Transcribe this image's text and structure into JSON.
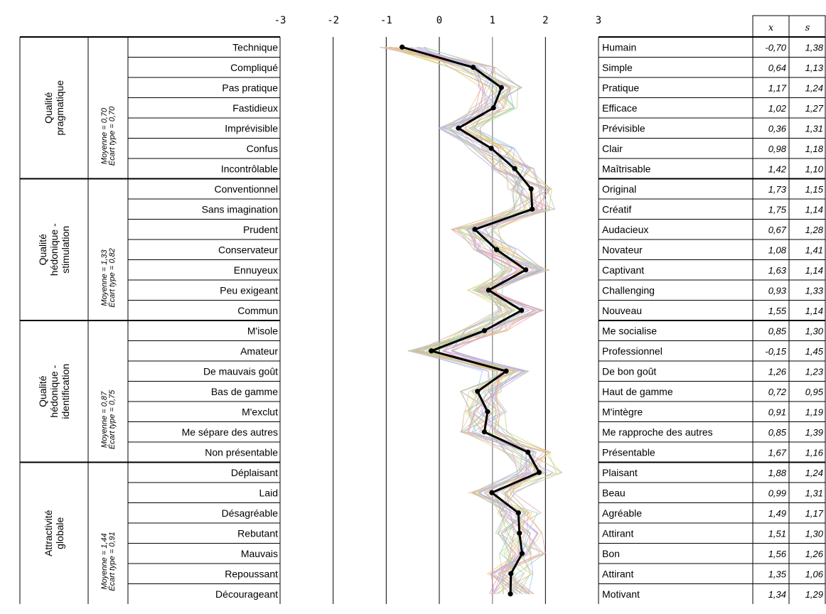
{
  "chart_data": {
    "type": "line",
    "x_axis": {
      "ticks": [
        "-3",
        "-2",
        "-1",
        "0",
        "1",
        "2",
        "3"
      ],
      "range": [
        -3,
        3
      ]
    },
    "stat_headers": {
      "mean": "x",
      "sd": "s"
    },
    "groups": [
      {
        "name": "Qualité pragmatique",
        "stats": "Moyenne = 0,70 Écart type = 0,70",
        "items": [
          {
            "left": "Technique",
            "right": "Humain",
            "x": -0.7,
            "x_label": "-0,70",
            "s_label": "1,38"
          },
          {
            "left": "Compliqué",
            "right": "Simple",
            "x": 0.64,
            "x_label": "0,64",
            "s_label": "1,13"
          },
          {
            "left": "Pas pratique",
            "right": "Pratique",
            "x": 1.17,
            "x_label": "1,17",
            "s_label": "1,24"
          },
          {
            "left": "Fastidieux",
            "right": "Efficace",
            "x": 1.02,
            "x_label": "1,02",
            "s_label": "1,27"
          },
          {
            "left": "Imprévisible",
            "right": "Prévisible",
            "x": 0.36,
            "x_label": "0,36",
            "s_label": "1,31"
          },
          {
            "left": "Confus",
            "right": "Clair",
            "x": 0.98,
            "x_label": "0,98",
            "s_label": "1,18"
          },
          {
            "left": "Incontrôlable",
            "right": "Maîtrisable",
            "x": 1.42,
            "x_label": "1,42",
            "s_label": "1,10"
          }
        ]
      },
      {
        "name": "Qualité hédonique - stimulation",
        "stats": "Moyenne = 1,33 Écart type = 0,82",
        "items": [
          {
            "left": "Conventionnel",
            "right": "Original",
            "x": 1.73,
            "x_label": "1,73",
            "s_label": "1,15"
          },
          {
            "left": "Sans imagination",
            "right": "Créatif",
            "x": 1.75,
            "x_label": "1,75",
            "s_label": "1,14"
          },
          {
            "left": "Prudent",
            "right": "Audacieux",
            "x": 0.67,
            "x_label": "0,67",
            "s_label": "1,28"
          },
          {
            "left": "Conservateur",
            "right": "Novateur",
            "x": 1.08,
            "x_label": "1,08",
            "s_label": "1,41"
          },
          {
            "left": "Ennuyeux",
            "right": "Captivant",
            "x": 1.63,
            "x_label": "1,63",
            "s_label": "1,14"
          },
          {
            "left": "Peu exigeant",
            "right": "Challenging",
            "x": 0.93,
            "x_label": "0,93",
            "s_label": "1,33"
          },
          {
            "left": "Commun",
            "right": "Nouveau",
            "x": 1.55,
            "x_label": "1,55",
            "s_label": "1,14"
          }
        ]
      },
      {
        "name": "Qualité hédonique - identification",
        "stats": "Moyenne = 0,87 Écart type = 0,75",
        "items": [
          {
            "left": "M'isole",
            "right": "Me socialise",
            "x": 0.85,
            "x_label": "0,85",
            "s_label": "1,30"
          },
          {
            "left": "Amateur",
            "right": "Professionnel",
            "x": -0.15,
            "x_label": "-0,15",
            "s_label": "1,45"
          },
          {
            "left": "De mauvais goût",
            "right": "De bon goût",
            "x": 1.26,
            "x_label": "1,26",
            "s_label": "1,23"
          },
          {
            "left": "Bas de gamme",
            "right": "Haut de gamme",
            "x": 0.72,
            "x_label": "0,72",
            "s_label": "0,95"
          },
          {
            "left": "M'exclut",
            "right": "M'intègre",
            "x": 0.91,
            "x_label": "0,91",
            "s_label": "1,19"
          },
          {
            "left": "Me sépare des autres",
            "right": "Me rapproche des autres",
            "x": 0.85,
            "x_label": "0,85",
            "s_label": "1,39"
          },
          {
            "left": "Non présentable",
            "right": "Présentable",
            "x": 1.67,
            "x_label": "1,67",
            "s_label": "1,16"
          }
        ]
      },
      {
        "name": "Attractivité globale",
        "stats": "Moyenne = 1,44 Écart type = 0,91",
        "items": [
          {
            "left": "Déplaisant",
            "right": "Plaisant",
            "x": 1.88,
            "x_label": "1,88",
            "s_label": "1,24"
          },
          {
            "left": "Laid",
            "right": "Beau",
            "x": 0.99,
            "x_label": "0,99",
            "s_label": "1,31"
          },
          {
            "left": "Désagréable",
            "right": "Agréable",
            "x": 1.49,
            "x_label": "1,49",
            "s_label": "1,17"
          },
          {
            "left": "Rebutant",
            "right": "Attirant",
            "x": 1.51,
            "x_label": "1,51",
            "s_label": "1,30"
          },
          {
            "left": "Mauvais",
            "right": "Bon",
            "x": 1.56,
            "x_label": "1,56",
            "s_label": "1,26"
          },
          {
            "left": "Repoussant",
            "right": "Attirant",
            "x": 1.35,
            "x_label": "1,35",
            "s_label": "1,06"
          },
          {
            "left": "Décourageant",
            "right": "Motivant",
            "x": 1.34,
            "x_label": "1,34",
            "s_label": "1,29"
          }
        ]
      }
    ],
    "mean_line_color": "#000000",
    "participant_line_colors": [
      "#e6a2a2",
      "#9fc2e8",
      "#b5d88f",
      "#d6a8df",
      "#f2c27c",
      "#8fd1c6",
      "#c9b38a",
      "#e39bc0",
      "#a3a8e6",
      "#d9d46c"
    ]
  }
}
